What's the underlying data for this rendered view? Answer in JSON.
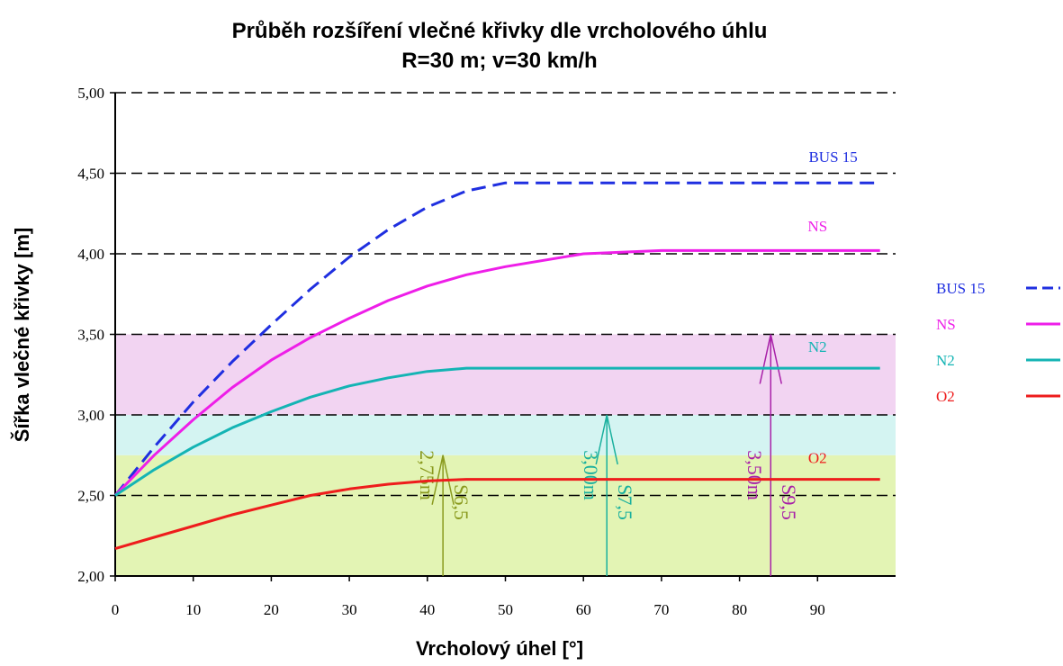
{
  "chart_data": {
    "type": "line",
    "title": "Průběh rozšíření vlečné křivky dle vrcholového úhlu",
    "subtitle": "R=30 m; v=30 km/h",
    "x_label": "Vrcholový úhel [°]",
    "y_label": "Šířka vlečné křivky [m]",
    "xlim": [
      0,
      100
    ],
    "xticks": [
      0,
      10,
      20,
      30,
      40,
      50,
      60,
      70,
      80,
      90
    ],
    "ylim": [
      2,
      5
    ],
    "yticks": [
      {
        "value": 2,
        "label": "2,00"
      },
      {
        "value": 2.5,
        "label": "2,50"
      },
      {
        "value": 3,
        "label": "3,00"
      },
      {
        "value": 3.5,
        "label": "3,50"
      },
      {
        "value": 4,
        "label": "4,00"
      },
      {
        "value": 4.5,
        "label": "4,50"
      },
      {
        "value": 5,
        "label": "5,00"
      }
    ],
    "grid": true,
    "legend": "right",
    "x": [
      0,
      5,
      10,
      15,
      20,
      25,
      30,
      35,
      40,
      45,
      50,
      60,
      70,
      80,
      90,
      98
    ],
    "series": [
      {
        "name": "BUS 15",
        "color": "#1f2fe0",
        "dashed": true,
        "label_at": [
          92,
          4.57
        ],
        "values": [
          2.5,
          2.8,
          3.08,
          3.33,
          3.56,
          3.78,
          3.98,
          4.15,
          4.29,
          4.39,
          4.44,
          4.44,
          4.44,
          4.44,
          4.44,
          4.44
        ]
      },
      {
        "name": "NS",
        "color": "#ee1ee8",
        "dashed": false,
        "label_at": [
          90,
          4.14
        ],
        "values": [
          2.5,
          2.75,
          2.97,
          3.17,
          3.34,
          3.48,
          3.6,
          3.71,
          3.8,
          3.87,
          3.92,
          4.0,
          4.02,
          4.02,
          4.02,
          4.02
        ]
      },
      {
        "name": "N2",
        "color": "#14b4b4",
        "dashed": false,
        "label_at": [
          90,
          3.39
        ],
        "values": [
          2.5,
          2.66,
          2.8,
          2.92,
          3.02,
          3.11,
          3.18,
          3.23,
          3.27,
          3.29,
          3.29,
          3.29,
          3.29,
          3.29,
          3.29,
          3.29
        ]
      },
      {
        "name": "O2",
        "color": "#ee1c1c",
        "dashed": false,
        "label_at": [
          90,
          2.7
        ],
        "values": [
          2.17,
          2.24,
          2.31,
          2.38,
          2.44,
          2.5,
          2.54,
          2.57,
          2.59,
          2.6,
          2.6,
          2.6,
          2.6,
          2.6,
          2.6,
          2.6
        ]
      }
    ],
    "bands": [
      {
        "from": 2,
        "to": 2.75,
        "color": "#e3f4b4"
      },
      {
        "from": 2.75,
        "to": 3,
        "color": "#d4f4f2"
      },
      {
        "from": 3,
        "to": 3.5,
        "color": "#f2d4f2"
      }
    ],
    "arrows": [
      {
        "x": 42,
        "value": 2.75,
        "label": "2,75m",
        "name": "S6,5",
        "color": "#8a9a1e"
      },
      {
        "x": 63,
        "value": 3,
        "label": "3,00m",
        "name": "S7,5",
        "color": "#1ab09e"
      },
      {
        "x": 84,
        "value": 3.5,
        "label": "3,50m",
        "name": "S9,5",
        "color": "#a820a8"
      }
    ]
  }
}
